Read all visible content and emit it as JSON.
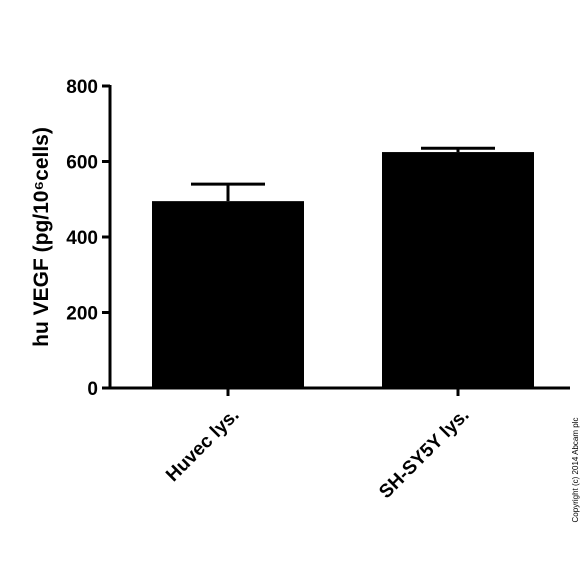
{
  "chart_data": {
    "type": "bar",
    "ylabel": "hu VEGF (pg/10⁶cells)",
    "categories": [
      "Huvec lys.",
      "SH-SY5Y lys."
    ],
    "values": [
      495,
      625
    ],
    "errors": [
      45,
      10
    ],
    "color": "#000000",
    "ylim": [
      0,
      800
    ],
    "yticks": [
      0,
      200,
      400,
      600,
      800
    ]
  },
  "copyright": "Copyright (c) 2014 Abcam plc"
}
